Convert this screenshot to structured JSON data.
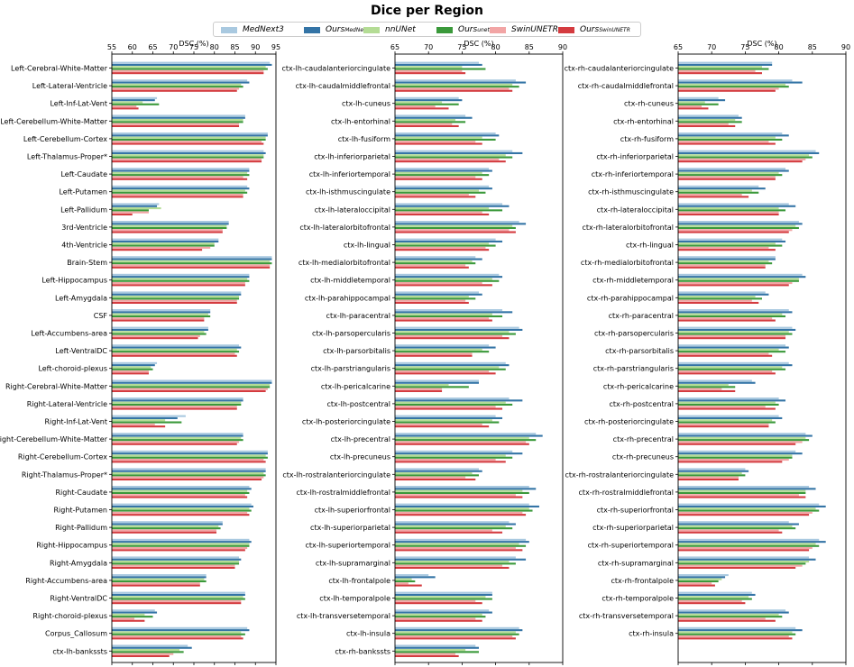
{
  "title": "Dice per Region",
  "legend": [
    {
      "label": "MedNext3",
      "sub": "",
      "color": "#a9c9e0"
    },
    {
      "label": "Ours",
      "sub": "MedNeXt",
      "color": "#3474a6"
    },
    {
      "label": "nnUNet",
      "sub": "",
      "color": "#b4dc95"
    },
    {
      "label": "Ours",
      "sub": "unet",
      "color": "#3a993a"
    },
    {
      "label": "SwinUNETR",
      "sub": "",
      "color": "#f2a5a5"
    },
    {
      "label": "Ours",
      "sub": "SwinUNETR",
      "color": "#d43b3f"
    }
  ],
  "chart_data": [
    {
      "type": "bar",
      "orientation": "horizontal",
      "xlabel": "DSC (%)",
      "xlim": [
        55,
        95
      ],
      "xticks": [
        55,
        60,
        65,
        70,
        75,
        80,
        85,
        90,
        95
      ],
      "grid": false,
      "categories": [
        "Left-Cerebral-White-Matter",
        "Left-Lateral-Ventricle",
        "Left-Inf-Lat-Vent",
        "Left-Cerebellum-White-Matter",
        "Left-Cerebellum-Cortex",
        "Left-Thalamus-Proper*",
        "Left-Caudate",
        "Left-Putamen",
        "Left-Pallidum",
        "3rd-Ventricle",
        "4th-Ventricle",
        "Brain-Stem",
        "Left-Hippocampus",
        "Left-Amygdala",
        "CSF",
        "Left-Accumbens-area",
        "Left-VentralDC",
        "Left-choroid-plexus",
        "Right-Cerebral-White-Matter",
        "Right-Lateral-Ventricle",
        "Right-Inf-Lat-Vent",
        "Right-Cerebellum-White-Matter",
        "Right-Cerebellum-Cortex",
        "Right-Thalamus-Proper*",
        "Right-Caudate",
        "Right-Putamen",
        "Right-Pallidum",
        "Right-Hippocampus",
        "Right-Amygdala",
        "Right-Accumbens-area",
        "Right-VentralDC",
        "Right-choroid-plexus",
        "Corpus_Callosum",
        "ctx-lh-bankssts"
      ],
      "series": [
        {
          "name": "MedNext3",
          "values": [
            93.5,
            88,
            66,
            87.5,
            93,
            92,
            88.5,
            88,
            66.5,
            83.5,
            81,
            94,
            88.5,
            86.5,
            79,
            78.5,
            86,
            66,
            94,
            87,
            73,
            87,
            93,
            92.5,
            88.5,
            89,
            82,
            88.5,
            86,
            78,
            87.5,
            65.5,
            88,
            73.5
          ]
        },
        {
          "name": "OursMedNeXt",
          "values": [
            94,
            88.5,
            65.5,
            87.5,
            93,
            92.5,
            88.5,
            88.5,
            66,
            83.5,
            81,
            94,
            88.5,
            86.5,
            79,
            78.5,
            86.5,
            65.5,
            94,
            87,
            71,
            87,
            93,
            92.5,
            89,
            89.5,
            82,
            89,
            86.5,
            78,
            87.5,
            66,
            88.5,
            74.5
          ]
        },
        {
          "name": "nnUNet",
          "values": [
            92.5,
            86.5,
            62.5,
            87,
            92.5,
            92,
            88,
            87.5,
            67,
            83,
            80,
            93.5,
            88,
            86,
            78.5,
            77.5,
            85.5,
            64.5,
            93.5,
            86.5,
            68,
            86.5,
            92.5,
            92,
            88,
            88.5,
            81,
            88.5,
            86,
            77.5,
            87,
            63,
            86.5,
            71.5
          ]
        },
        {
          "name": "Oursunet",
          "values": [
            93,
            87,
            66.5,
            87,
            92.5,
            92,
            88.5,
            88,
            64,
            83,
            80,
            94,
            88.5,
            86,
            79,
            78,
            86,
            65,
            93.5,
            86.5,
            72,
            87,
            93,
            92.5,
            88.5,
            89,
            81.5,
            88.5,
            86,
            78,
            87.5,
            65,
            87.5,
            72.5
          ]
        },
        {
          "name": "SwinUNETR",
          "values": [
            92,
            86,
            61,
            86,
            91.5,
            91.5,
            87,
            87,
            64,
            82,
            79,
            93.5,
            87.5,
            85.5,
            77.5,
            76.5,
            85,
            64,
            93,
            85.5,
            65.5,
            86,
            92,
            92,
            87.5,
            88,
            80.5,
            88,
            85,
            76.5,
            86.5,
            60.5,
            86.5,
            70
          ]
        },
        {
          "name": "OursSwinUNETR",
          "values": [
            92,
            85.5,
            61.5,
            86,
            92,
            91.5,
            88,
            87,
            60,
            82,
            77,
            93.5,
            87.5,
            85.5,
            77.5,
            76,
            85.5,
            64,
            92.5,
            85.5,
            68,
            85.5,
            92.5,
            91.5,
            88,
            88.5,
            80.5,
            87.5,
            85,
            76.5,
            86.5,
            63,
            87,
            69
          ]
        }
      ]
    },
    {
      "type": "bar",
      "orientation": "horizontal",
      "xlabel": "DSC (%)",
      "xlim": [
        65,
        90
      ],
      "xticks": [
        65,
        70,
        75,
        80,
        85,
        90
      ],
      "grid": false,
      "categories": [
        "ctx-lh-caudalanteriorcingulate",
        "ctx-lh-caudalmiddlefrontal",
        "ctx-lh-cuneus",
        "ctx-lh-entorhinal",
        "ctx-lh-fusiform",
        "ctx-lh-inferiorparietal",
        "ctx-lh-inferiortemporal",
        "ctx-lh-isthmuscingulate",
        "ctx-lh-lateraloccipital",
        "ctx-lh-lateralorbitofrontal",
        "ctx-lh-lingual",
        "ctx-lh-medialorbitofrontal",
        "ctx-lh-middletemporal",
        "ctx-lh-parahippocampal",
        "ctx-lh-paracentral",
        "ctx-lh-parsopercularis",
        "ctx-lh-parsorbitalis",
        "ctx-lh-parstriangularis",
        "ctx-lh-pericalcarine",
        "ctx-lh-postcentral",
        "ctx-lh-posteriorcingulate",
        "ctx-lh-precentral",
        "ctx-lh-precuneus",
        "ctx-lh-rostralanteriorcingulate",
        "ctx-lh-rostralmiddlefrontal",
        "ctx-lh-superiorfrontal",
        "ctx-lh-superiorparietal",
        "ctx-lh-superiortemporal",
        "ctx-lh-supramarginal",
        "ctx-lh-frontalpole",
        "ctx-lh-temporalpole",
        "ctx-lh-transversetemporal",
        "ctx-lh-insula",
        "ctx-rh-bankssts"
      ],
      "series": [
        {
          "name": "MedNext3",
          "values": [
            77.5,
            83,
            74.5,
            75.5,
            80,
            82.5,
            79,
            79,
            81,
            83.5,
            80,
            77,
            80.5,
            77.5,
            81,
            83.5,
            79,
            81.5,
            77.5,
            82,
            80,
            86,
            82.5,
            77.5,
            85,
            85,
            82,
            84.5,
            83,
            70,
            79.5,
            79,
            83.5,
            77
          ]
        },
        {
          "name": "OursMedNeXt",
          "values": [
            78,
            84.5,
            75,
            76.5,
            80.5,
            84,
            79.5,
            79.5,
            82,
            84.5,
            81,
            78,
            81,
            78,
            82.5,
            84,
            80,
            82,
            77.5,
            84,
            81,
            87,
            84,
            78,
            86,
            86.5,
            83,
            85,
            84.5,
            71,
            79.5,
            79.5,
            84,
            77.5
          ]
        },
        {
          "name": "nnUNet",
          "values": [
            75,
            82.5,
            72,
            74,
            78,
            81.5,
            78,
            77.5,
            79,
            82.5,
            79,
            76.5,
            79.5,
            76,
            79.5,
            82,
            78,
            80.5,
            73,
            81.5,
            79.5,
            85,
            81.5,
            76.5,
            84,
            85,
            81.5,
            83.5,
            82,
            67.5,
            78.5,
            78,
            83,
            75.5
          ]
        },
        {
          "name": "Oursunet",
          "values": [
            78.5,
            83.5,
            74.5,
            75.5,
            80,
            82.5,
            79,
            78.5,
            81,
            83,
            80,
            77,
            80.5,
            77,
            81,
            83,
            79,
            81.5,
            76,
            82.5,
            80.5,
            86,
            82.5,
            77.5,
            85,
            85.5,
            82.5,
            84.5,
            83,
            68,
            79.5,
            78.5,
            83.5,
            77.5
          ]
        },
        {
          "name": "SwinUNETR",
          "values": [
            75,
            82,
            71,
            73.5,
            77,
            80.5,
            77,
            76,
            78,
            82,
            78.5,
            75.5,
            78,
            75.5,
            79,
            81,
            76.5,
            79,
            72,
            80,
            78,
            84.5,
            80,
            75.5,
            83,
            84,
            79.5,
            83,
            81,
            67,
            77,
            77,
            82.5,
            74
          ]
        },
        {
          "name": "OursSwinUNETR",
          "values": [
            75.5,
            82.5,
            73,
            74.5,
            78,
            81.5,
            78,
            77,
            79,
            83,
            79,
            76,
            79.5,
            76,
            79.5,
            82,
            76.5,
            80,
            72,
            81,
            79,
            85,
            81.5,
            77,
            84,
            84.5,
            81,
            84,
            82,
            69,
            78,
            78,
            83,
            74.5
          ]
        }
      ]
    },
    {
      "type": "bar",
      "orientation": "horizontal",
      "xlabel": "DSC (%)",
      "xlim": [
        65,
        90
      ],
      "xticks": [
        65,
        70,
        75,
        80,
        85,
        90
      ],
      "grid": false,
      "categories": [
        "ctx-rh-caudalanteriorcingulate",
        "ctx-rh-caudalmiddlefrontal",
        "ctx-rh-cuneus",
        "ctx-rh-entorhinal",
        "ctx-rh-fusiform",
        "ctx-rh-inferiorparietal",
        "ctx-rh-inferiortemporal",
        "ctx-rh-isthmuscingulate",
        "ctx-rh-lateraloccipital",
        "ctx-rh-lateralorbitofrontal",
        "ctx-rh-lingual",
        "ctx-rh-medialorbitofrontal",
        "ctx-rh-middletemporal",
        "ctx-rh-parahippocampal",
        "ctx-rh-paracentral",
        "ctx-rh-parsopercularis",
        "ctx-rh-parsorbitalis",
        "ctx-rh-parstriangularis",
        "ctx-rh-pericalcarine",
        "ctx-rh-postcentral",
        "ctx-rh-posteriorcingulate",
        "ctx-rh-precentral",
        "ctx-rh-precuneus",
        "ctx-rh-rostralanteriorcingulate",
        "ctx-rh-rostralmiddlefrontal",
        "ctx-rh-superiorfrontal",
        "ctx-rh-superiorparietal",
        "ctx-rh-superiortemporal",
        "ctx-rh-supramarginal",
        "ctx-rh-frontalpole",
        "ctx-rh-temporalpole",
        "ctx-rh-transversetemporal",
        "ctx-rh-insula"
      ],
      "series": [
        {
          "name": "MedNext3",
          "values": [
            79,
            82,
            71,
            74,
            80.5,
            85.5,
            81,
            77,
            81.5,
            83,
            80.5,
            79.5,
            83.5,
            78,
            81.5,
            82,
            81,
            81.5,
            76,
            80,
            80,
            84,
            82.5,
            75,
            84.5,
            86,
            81.5,
            86,
            84.5,
            72.5,
            76,
            81,
            82.5
          ]
        },
        {
          "name": "OursMedNeXt",
          "values": [
            79,
            83.5,
            72,
            74.5,
            81.5,
            86,
            81.5,
            78,
            82.5,
            83.5,
            81,
            79.5,
            84,
            78.5,
            82,
            82.5,
            81.5,
            82,
            76.5,
            81,
            80.5,
            85,
            83.5,
            75.5,
            85.5,
            87,
            83,
            87,
            85.5,
            72,
            76.5,
            81.5,
            83.5
          ]
        },
        {
          "name": "nnUNet",
          "values": [
            77.5,
            81,
            69,
            73.5,
            79.5,
            84.5,
            80,
            76,
            80,
            82.5,
            79.5,
            78.5,
            83,
            76.5,
            80.5,
            81.5,
            80,
            80.5,
            72.5,
            79.5,
            79,
            84,
            82,
            74.5,
            84,
            85.5,
            82,
            85.5,
            84.5,
            71.5,
            75.5,
            80,
            82
          ]
        },
        {
          "name": "Oursunet",
          "values": [
            78.5,
            81.5,
            71,
            74.5,
            80.5,
            85,
            80.5,
            77,
            81,
            83,
            80.5,
            79,
            83,
            77.5,
            81,
            82,
            81,
            81,
            73.5,
            80,
            79.5,
            84.5,
            82,
            75,
            84,
            86,
            82.5,
            86,
            84,
            71,
            76,
            80.5,
            82.5
          ]
        },
        {
          "name": "SwinUNETR",
          "values": [
            76.5,
            80,
            68.5,
            72.5,
            78.5,
            84,
            79.5,
            74.5,
            80,
            82,
            78.5,
            78,
            82,
            76,
            79,
            81,
            78.5,
            79,
            71.5,
            78,
            78.5,
            83.5,
            81.5,
            74,
            83,
            85,
            80,
            85,
            83.5,
            70,
            74.5,
            78,
            81.5
          ]
        },
        {
          "name": "OursSwinUNETR",
          "values": [
            77.5,
            79.5,
            69.5,
            73.5,
            79.5,
            83.5,
            79.5,
            75.5,
            80,
            81.5,
            79.5,
            78,
            81.5,
            77,
            79.5,
            81,
            79,
            79.5,
            73.5,
            79.5,
            78.5,
            82.5,
            80.5,
            74,
            84,
            84.5,
            80.5,
            84.5,
            82.5,
            70.5,
            75,
            79.5,
            82
          ]
        }
      ]
    }
  ]
}
